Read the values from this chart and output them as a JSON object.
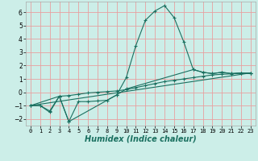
{
  "title": "",
  "xlabel": "Humidex (Indice chaleur)",
  "background_color": "#cceee8",
  "grid_color_v": "#e8a0a0",
  "grid_color_h": "#e8a0a0",
  "line_color": "#1a7060",
  "xlim": [
    -0.5,
    23.5
  ],
  "ylim": [
    -2.5,
    6.8
  ],
  "yticks": [
    -2,
    -1,
    0,
    1,
    2,
    3,
    4,
    5,
    6
  ],
  "xticks": [
    0,
    1,
    2,
    3,
    4,
    5,
    6,
    7,
    8,
    9,
    10,
    11,
    12,
    13,
    14,
    15,
    16,
    17,
    18,
    19,
    20,
    21,
    22,
    23
  ],
  "series1": [
    [
      0,
      -1.0
    ],
    [
      1,
      -1.0
    ],
    [
      2,
      -1.5
    ],
    [
      3,
      -0.3
    ],
    [
      4,
      -2.2
    ],
    [
      5,
      -0.7
    ],
    [
      6,
      -0.7
    ],
    [
      7,
      -0.65
    ],
    [
      8,
      -0.6
    ],
    [
      9,
      -0.2
    ],
    [
      10,
      1.1
    ],
    [
      11,
      3.5
    ],
    [
      12,
      5.4
    ],
    [
      13,
      6.1
    ],
    [
      14,
      6.5
    ],
    [
      15,
      5.6
    ],
    [
      16,
      3.8
    ],
    [
      17,
      1.7
    ],
    [
      18,
      1.5
    ],
    [
      19,
      1.4
    ],
    [
      20,
      1.5
    ],
    [
      21,
      1.4
    ],
    [
      22,
      1.45
    ],
    [
      23,
      1.4
    ]
  ],
  "series2": [
    [
      0,
      -1.0
    ],
    [
      1,
      -1.0
    ],
    [
      2,
      -1.4
    ],
    [
      3,
      -0.3
    ],
    [
      4,
      -0.25
    ],
    [
      5,
      -0.15
    ],
    [
      6,
      -0.05
    ],
    [
      7,
      0.0
    ],
    [
      8,
      0.05
    ],
    [
      9,
      0.1
    ],
    [
      10,
      0.2
    ],
    [
      11,
      0.35
    ],
    [
      12,
      0.5
    ],
    [
      13,
      0.65
    ],
    [
      14,
      0.8
    ],
    [
      15,
      0.9
    ],
    [
      16,
      1.0
    ],
    [
      17,
      1.1
    ],
    [
      18,
      1.2
    ],
    [
      19,
      1.3
    ],
    [
      20,
      1.35
    ],
    [
      21,
      1.38
    ],
    [
      22,
      1.42
    ],
    [
      23,
      1.45
    ]
  ],
  "series3": [
    [
      0,
      -1.0
    ],
    [
      3,
      -0.3
    ],
    [
      4,
      -2.2
    ],
    [
      9,
      -0.2
    ],
    [
      10,
      0.25
    ],
    [
      17,
      1.7
    ],
    [
      18,
      1.5
    ],
    [
      19,
      1.4
    ],
    [
      20,
      1.5
    ],
    [
      21,
      1.4
    ],
    [
      22,
      1.45
    ],
    [
      23,
      1.4
    ]
  ],
  "series4": [
    [
      0,
      -1.0
    ],
    [
      23,
      1.45
    ]
  ]
}
